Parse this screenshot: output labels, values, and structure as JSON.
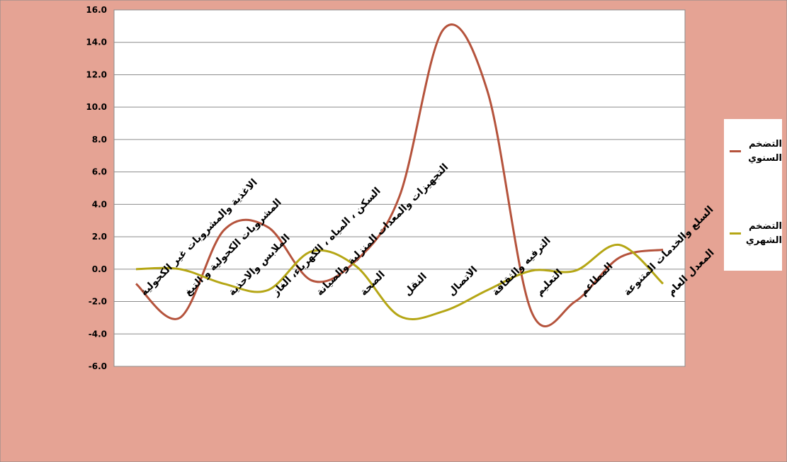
{
  "chart_data": {
    "type": "line",
    "categories": [
      "الاغذية والمشروبات غير الكحولية",
      "المشروبات الكحولية و التبغ",
      "الملابس والاحذية",
      "السكن ، المياه ، الكهرباء، الغاز",
      "التجهيزات والمعدات المنزلية والصيانة",
      "الصحة",
      "النقل",
      "الاتصال",
      "الترفيه والثقافة",
      "التعليم",
      "المطاعم",
      "السلع والخدمات المتنوعة",
      "المعدل العام"
    ],
    "series": [
      {
        "name": "التضخم السنوي",
        "color": "#b5533c",
        "values": [
          -0.9,
          -3.0,
          2.4,
          2.6,
          -0.7,
          0.5,
          4.5,
          14.8,
          11.0,
          -2.6,
          -2.0,
          0.7,
          1.2
        ]
      },
      {
        "name": "التضخم الشهري",
        "color": "#b5a615",
        "values": [
          0.0,
          0.0,
          -0.9,
          -1.3,
          1.1,
          0.2,
          -2.9,
          -2.6,
          -1.3,
          -0.1,
          -0.1,
          1.5,
          -0.9
        ]
      }
    ],
    "y_ticks": [
      "16.0",
      "14.0",
      "12.0",
      "10.0",
      "8.0",
      "6.0",
      "4.0",
      "2.0",
      "0.0",
      "-2.0",
      "-4.0",
      "-6.0"
    ],
    "ylim": [
      -6,
      16
    ],
    "grid": true,
    "legend_position": "right",
    "background_color": "#e5a394",
    "plot_area_color": "#ffffff"
  }
}
